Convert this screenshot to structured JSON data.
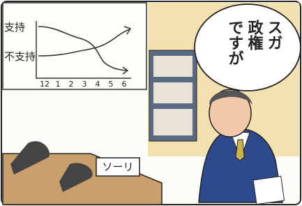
{
  "wall_chart": {
    "labels": [
      "支持",
      "不支持"
    ],
    "months": [
      "12",
      "1",
      "2",
      "3",
      "4",
      "5",
      "6"
    ]
  },
  "speech_bubble": {
    "lines": [
      "スガ",
      "政権",
      "ですが"
    ]
  },
  "desk_sign": "ソーリ"
}
